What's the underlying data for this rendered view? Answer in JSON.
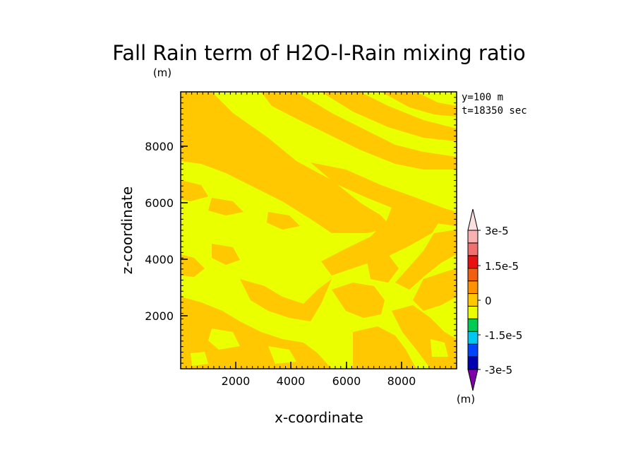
{
  "chart_data": {
    "type": "heatmap",
    "title": "Fall Rain term of H2O-l-Rain mixing ratio",
    "title_unit": "(m)",
    "xlabel": "x-coordinate",
    "ylabel": "z-coordinate",
    "xlim": [
      0,
      10000
    ],
    "ylim": [
      0,
      10000
    ],
    "xticks": [
      "2000",
      "4000",
      "6000",
      "8000"
    ],
    "yticks": [
      "2000",
      "4000",
      "6000",
      "8000"
    ],
    "info": [
      "y=100 m",
      "t=18350 sec"
    ],
    "colorbar": {
      "labels": [
        "3e-5",
        "1.5e-5",
        "0",
        "-1.5e-5",
        "-3e-5"
      ],
      "unit": "(m)",
      "colors": [
        "#7f00a8",
        "#0000b3",
        "#0044ff",
        "#00c8f0",
        "#00cc55",
        "#eaff00",
        "#ffc800",
        "#ff9200",
        "#f06010",
        "#e81010",
        "#f07070",
        "#f8b0b0",
        "#fce0e0"
      ]
    },
    "field": {
      "background_value": 0,
      "background_color": "#eaff00",
      "feature_color": "#ffc800",
      "description": "alternating small positive / near-zero bands, diagonal streaks from upper-left to lower-right"
    }
  }
}
